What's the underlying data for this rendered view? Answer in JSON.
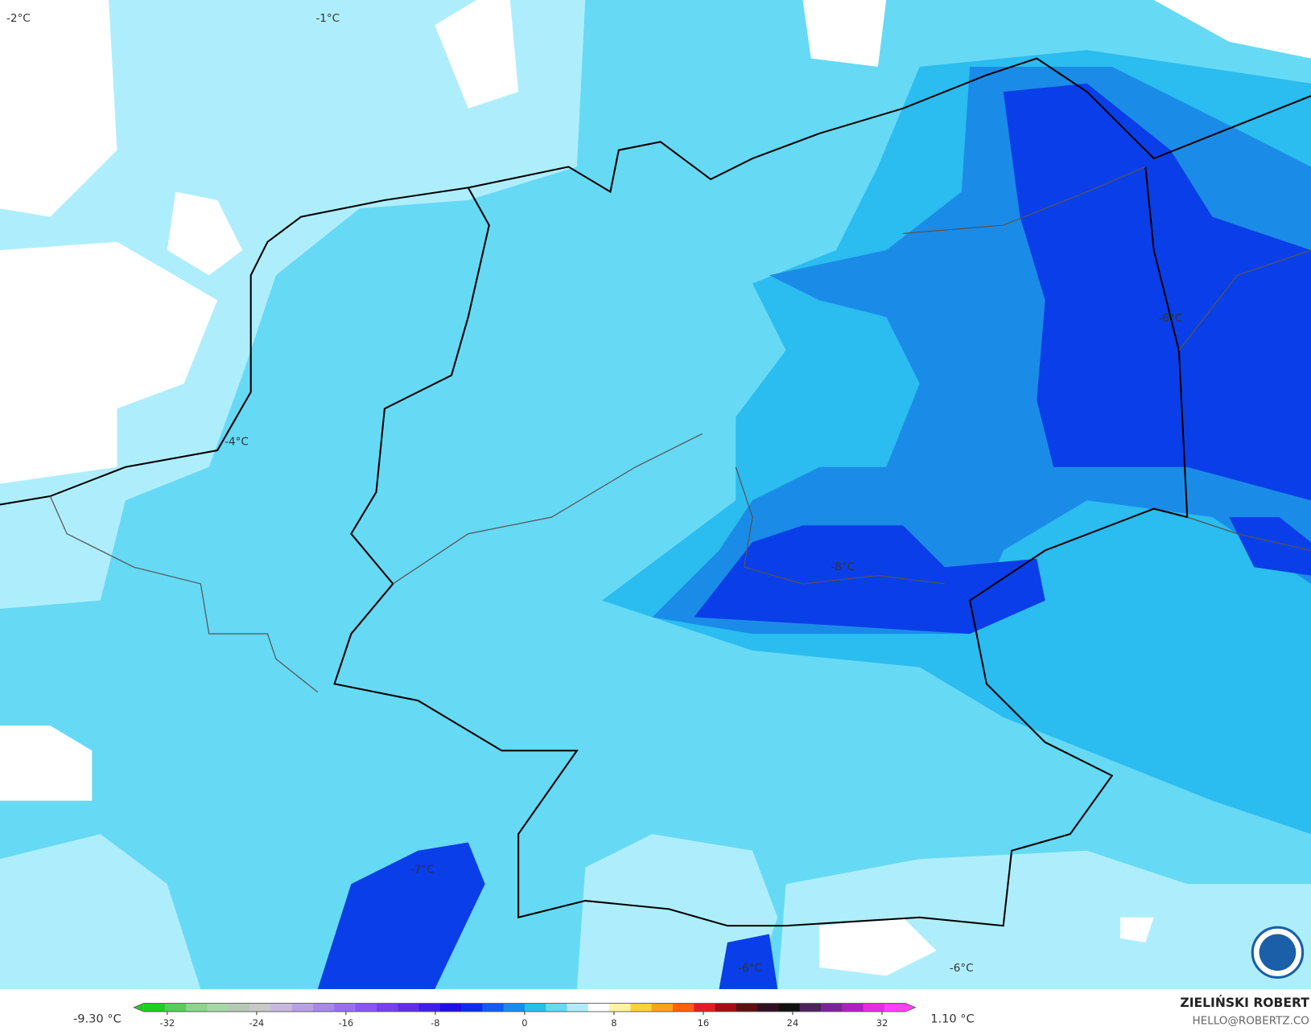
{
  "map_labels": [
    "-2°C",
    "-1°C",
    "-4°C",
    "-8°C",
    "-8°C",
    "-7°C",
    "-6°C",
    "-6°C"
  ],
  "colorbar": {
    "min_label": "-9.30 °C",
    "max_label": "1.10 °C",
    "lim": [
      -35,
      35
    ],
    "ticks": [
      -32,
      -24,
      -16,
      -8,
      0,
      8,
      16,
      24,
      32
    ],
    "colors": [
      "#22cc22",
      "#55d055",
      "#88d888",
      "#a8d8a8",
      "#b8c8b8",
      "#c8c8c8",
      "#c8b8e0",
      "#b8a0e8",
      "#a888ee",
      "#9870ee",
      "#8858ee",
      "#7840e8",
      "#6030e0",
      "#4020e0",
      "#2010e0",
      "#0a30e8",
      "#1060ee",
      "#1a8ce8",
      "#2bbcf0",
      "#66d9f5",
      "#aeeefc",
      "#ffffff",
      "#fff3a0",
      "#ffd040",
      "#ffa020",
      "#ff6010",
      "#e02020",
      "#a01010",
      "#601010",
      "#301020",
      "#101010",
      "#502060",
      "#8020a0",
      "#b020c0",
      "#e030e0",
      "#ff40ff"
    ]
  },
  "credit": {
    "name": "ZIELIŃSKI ROBERT",
    "email": "HELLO@ROBERTZ.CO"
  }
}
